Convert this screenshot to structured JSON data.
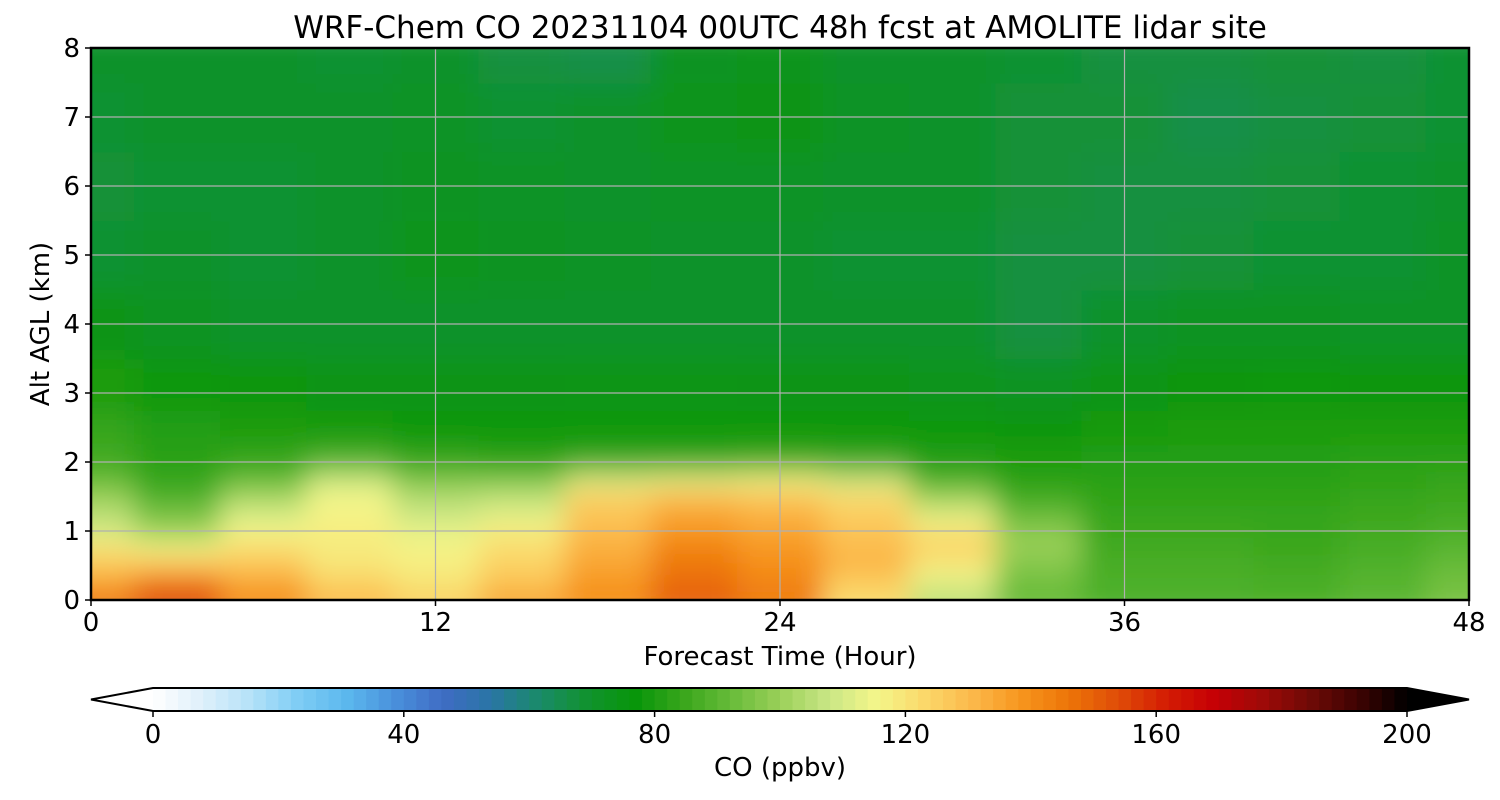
{
  "chart_data": {
    "type": "heatmap",
    "title": "WRF-Chem CO  20231104 00UTC 48h fcst at AMOLITE lidar site",
    "xlabel": "Forecast Time (Hour)",
    "ylabel": "Alt AGL (km)",
    "xlim": [
      0,
      48
    ],
    "ylim": [
      0,
      8
    ],
    "xticks": [
      0,
      12,
      24,
      36,
      48
    ],
    "yticks": [
      0,
      1,
      2,
      3,
      4,
      5,
      6,
      7,
      8
    ],
    "grid": true,
    "colorbar": {
      "label": "CO  (ppbv)",
      "range": [
        0,
        200
      ],
      "ticks": [
        0,
        40,
        80,
        120,
        160,
        200
      ],
      "extend": "both",
      "orientation": "horizontal",
      "position": "bottom",
      "colors": [
        "#ffffff",
        "#dff0fb",
        "#b6e2f8",
        "#7fcdf5",
        "#5cb8ee",
        "#4a91dc",
        "#3f6cc4",
        "#2a75a6",
        "#1a8a6a",
        "#11922f",
        "#07960a",
        "#3aa61c",
        "#68bc3a",
        "#9bd059",
        "#c9e685",
        "#f4f68a",
        "#fbd86a",
        "#fbb84a",
        "#f7951d",
        "#ec7408",
        "#e04d08",
        "#d41d04",
        "#c60005",
        "#9e0a08",
        "#6e0a06",
        "#3d0302",
        "#000000"
      ]
    },
    "x": [
      0,
      3,
      6,
      9,
      12,
      15,
      18,
      21,
      24,
      27,
      30,
      33,
      36,
      39,
      42,
      45,
      48
    ],
    "y": [
      0,
      0.25,
      0.5,
      0.75,
      1,
      1.25,
      1.5,
      1.75,
      2,
      2.5,
      3,
      4,
      5,
      6,
      7,
      8
    ],
    "values": [
      [
        145,
        155,
        140,
        130,
        125,
        135,
        140,
        150,
        145,
        122,
        105,
        92,
        88,
        88,
        88,
        90,
        95
      ],
      [
        135,
        145,
        135,
        125,
        120,
        128,
        138,
        148,
        142,
        125,
        112,
        94,
        88,
        88,
        87,
        90,
        94
      ],
      [
        128,
        130,
        128,
        120,
        118,
        125,
        135,
        145,
        140,
        132,
        118,
        96,
        87,
        87,
        86,
        88,
        92
      ],
      [
        120,
        115,
        122,
        118,
        116,
        122,
        133,
        143,
        138,
        130,
        125,
        100,
        86,
        86,
        85,
        87,
        90
      ],
      [
        110,
        100,
        115,
        118,
        113,
        118,
        130,
        138,
        135,
        128,
        120,
        98,
        85,
        85,
        84,
        86,
        88
      ],
      [
        105,
        95,
        110,
        116,
        108,
        112,
        128,
        135,
        132,
        126,
        112,
        92,
        84,
        84,
        84,
        85,
        86
      ],
      [
        100,
        88,
        102,
        115,
        104,
        106,
        125,
        130,
        128,
        122,
        100,
        86,
        83,
        83,
        83,
        84,
        85
      ],
      [
        92,
        84,
        92,
        108,
        96,
        96,
        110,
        112,
        114,
        108,
        88,
        82,
        82,
        82,
        82,
        83,
        84
      ],
      [
        86,
        82,
        84,
        88,
        84,
        82,
        84,
        84,
        85,
        84,
        81,
        80,
        81,
        81,
        81,
        82,
        82
      ],
      [
        84,
        81,
        80,
        79,
        78,
        78,
        78,
        78,
        78,
        78,
        78,
        77,
        79,
        80,
        80,
        80,
        80
      ],
      [
        80,
        78,
        76,
        74,
        74,
        74,
        75,
        75,
        74,
        74,
        73,
        72,
        74,
        77,
        78,
        77,
        77
      ],
      [
        74,
        72,
        70,
        70,
        70,
        70,
        70,
        70,
        70,
        70,
        70,
        67,
        70,
        72,
        72,
        71,
        71
      ],
      [
        69,
        70,
        69,
        70,
        73,
        72,
        71,
        70,
        70,
        69,
        69,
        67,
        67,
        68,
        69,
        69,
        71
      ],
      [
        68,
        69,
        69,
        70,
        72,
        71,
        70,
        71,
        71,
        70,
        70,
        68,
        67,
        67,
        68,
        69,
        70
      ],
      [
        69,
        70,
        70,
        70,
        71,
        69,
        70,
        73,
        74,
        71,
        70,
        68,
        68,
        66,
        67,
        68,
        69
      ],
      [
        70,
        70,
        70,
        69,
        70,
        67,
        66,
        72,
        73,
        70,
        70,
        69,
        67,
        67,
        68,
        67,
        69
      ]
    ]
  }
}
